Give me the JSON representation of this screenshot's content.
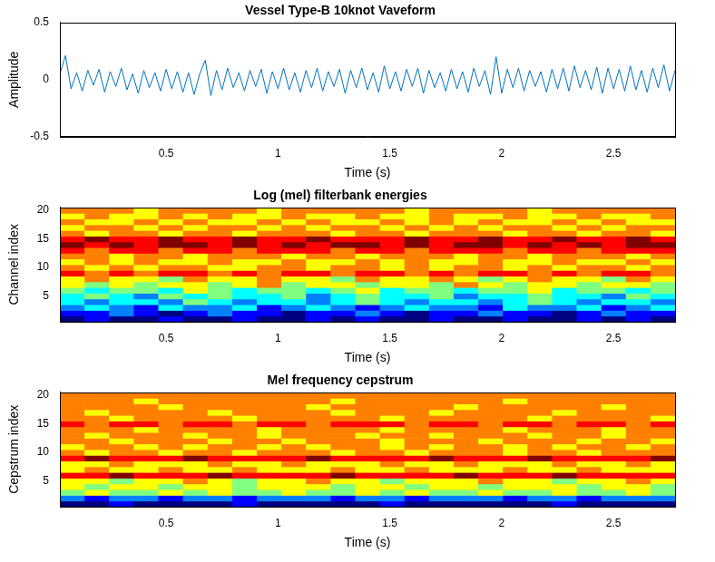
{
  "chart_data": [
    {
      "type": "line",
      "title": "Vessel Type-B 10knot Vaveform",
      "x_label": "Time (s)",
      "y_label": "Amplitude",
      "color": "#0072bd",
      "grid": false,
      "xlim": [
        0.025,
        2.775
      ],
      "xticks": [
        0.5,
        1,
        1.5,
        2,
        2.5
      ],
      "ylim": [
        -0.5,
        0.5
      ],
      "yticks": [
        -0.5,
        0,
        0.5
      ],
      "x": [
        0.025,
        0.05,
        0.075,
        0.1,
        0.125,
        0.15,
        0.175,
        0.2,
        0.225,
        0.25,
        0.275,
        0.3,
        0.325,
        0.35,
        0.375,
        0.4,
        0.425,
        0.45,
        0.475,
        0.5,
        0.525,
        0.55,
        0.575,
        0.6,
        0.625,
        0.65,
        0.675,
        0.7,
        0.725,
        0.75,
        0.775,
        0.8,
        0.825,
        0.85,
        0.875,
        0.9,
        0.925,
        0.95,
        0.975,
        1,
        1.025,
        1.05,
        1.075,
        1.1,
        1.125,
        1.15,
        1.175,
        1.2,
        1.225,
        1.25,
        1.275,
        1.3,
        1.325,
        1.35,
        1.375,
        1.4,
        1.425,
        1.45,
        1.475,
        1.5,
        1.525,
        1.55,
        1.575,
        1.6,
        1.625,
        1.65,
        1.675,
        1.7,
        1.725,
        1.75,
        1.775,
        1.8,
        1.825,
        1.85,
        1.875,
        1.9,
        1.925,
        1.95,
        1.975,
        2,
        2.025,
        2.05,
        2.075,
        2.1,
        2.125,
        2.15,
        2.175,
        2.2,
        2.225,
        2.25,
        2.275,
        2.3,
        2.325,
        2.35,
        2.375,
        2.4,
        2.425,
        2.45,
        2.475,
        2.5,
        2.525,
        2.55,
        2.575,
        2.6,
        2.625,
        2.65,
        2.675,
        2.7,
        2.725,
        2.75,
        2.775
      ],
      "values": [
        0.05,
        0.21,
        -0.08,
        0.06,
        -0.1,
        0.08,
        -0.05,
        0.09,
        -0.11,
        0.07,
        -0.06,
        0.1,
        -0.09,
        0.05,
        -0.12,
        0.08,
        -0.07,
        0.06,
        -0.1,
        0.09,
        -0.08,
        0.07,
        -0.11,
        0.06,
        -0.13,
        0.05,
        0.17,
        -0.14,
        0.08,
        -0.09,
        0.1,
        -0.07,
        0.06,
        -0.1,
        0.08,
        -0.06,
        0.09,
        -0.12,
        0.07,
        -0.08,
        0.1,
        -0.09,
        0.06,
        -0.11,
        0.08,
        -0.07,
        0.1,
        -0.1,
        0.07,
        -0.06,
        0.09,
        -0.12,
        0.08,
        -0.07,
        0.1,
        -0.09,
        0.06,
        -0.11,
        0.12,
        -0.08,
        0.07,
        -0.1,
        0.09,
        -0.06,
        0.1,
        -0.12,
        0.08,
        -0.07,
        0.06,
        -0.1,
        0.09,
        -0.08,
        0.07,
        -0.11,
        0.1,
        -0.06,
        0.08,
        -0.13,
        0.2,
        -0.12,
        0.09,
        -0.07,
        0.1,
        -0.1,
        0.08,
        -0.06,
        0.07,
        -0.11,
        0.09,
        -0.08,
        0.1,
        -0.1,
        0.12,
        -0.07,
        0.08,
        -0.09,
        0.11,
        -0.12,
        0.1,
        -0.08,
        0.09,
        -0.1,
        0.12,
        -0.09,
        0.08,
        -0.11,
        0.1,
        -0.07,
        0.13,
        -0.1,
        0.08
      ]
    },
    {
      "type": "heatmap",
      "title": "Log (mel) filterbank energies",
      "x_label": "Time (s)",
      "y_label": "Channel index",
      "grid": false,
      "xlim": [
        0.025,
        2.775
      ],
      "xticks": [
        0.5,
        1,
        1.5,
        2,
        2.5
      ],
      "ylim": [
        0.5,
        20.5
      ],
      "yticks": [
        5,
        10,
        15,
        20
      ],
      "x": [
        0.08,
        0.19,
        0.3,
        0.41,
        0.52,
        0.63,
        0.74,
        0.85,
        0.96,
        1.07,
        1.18,
        1.29,
        1.4,
        1.51,
        1.62,
        1.73,
        1.84,
        1.95,
        2.06,
        2.17,
        2.28,
        2.39,
        2.5,
        2.61,
        2.72
      ],
      "y": [
        1,
        2,
        3,
        4,
        5,
        6,
        7,
        8,
        9,
        10,
        11,
        12,
        13,
        14,
        15,
        16,
        17,
        18,
        19,
        20
      ],
      "cells": [
        [
          1,
          2,
          1,
          1,
          2,
          1,
          1,
          2,
          1,
          1,
          2,
          1,
          2,
          1,
          1,
          2,
          1,
          1,
          2,
          1,
          1,
          2,
          1,
          2,
          1
        ],
        [
          2,
          2,
          3,
          2,
          1,
          2,
          3,
          2,
          2,
          1,
          2,
          2,
          3,
          2,
          1,
          2,
          2,
          3,
          2,
          2,
          1,
          2,
          3,
          2,
          2
        ],
        [
          3,
          4,
          3,
          2,
          4,
          3,
          3,
          4,
          2,
          3,
          4,
          3,
          2,
          3,
          4,
          3,
          3,
          2,
          4,
          3,
          3,
          4,
          2,
          3,
          4
        ],
        [
          4,
          3,
          4,
          4,
          3,
          5,
          4,
          3,
          4,
          4,
          3,
          4,
          5,
          4,
          3,
          4,
          4,
          3,
          4,
          5,
          4,
          3,
          4,
          4,
          3
        ],
        [
          4,
          5,
          4,
          3,
          5,
          4,
          5,
          4,
          4,
          5,
          3,
          4,
          5,
          4,
          4,
          5,
          3,
          4,
          4,
          5,
          4,
          4,
          3,
          5,
          4
        ],
        [
          5,
          4,
          5,
          5,
          4,
          6,
          5,
          4,
          5,
          5,
          4,
          5,
          6,
          4,
          5,
          5,
          4,
          5,
          5,
          6,
          4,
          5,
          5,
          4,
          5
        ],
        [
          6,
          5,
          6,
          5,
          6,
          6,
          5,
          6,
          7,
          5,
          6,
          6,
          5,
          6,
          6,
          5,
          7,
          6,
          5,
          6,
          6,
          5,
          6,
          6,
          5
        ],
        [
          6,
          7,
          6,
          6,
          5,
          7,
          6,
          6,
          7,
          6,
          6,
          5,
          7,
          6,
          6,
          7,
          6,
          5,
          6,
          7,
          6,
          6,
          5,
          7,
          6
        ],
        [
          8,
          7,
          8,
          7,
          8,
          8,
          7,
          8,
          7,
          8,
          8,
          7,
          8,
          8,
          7,
          8,
          7,
          8,
          8,
          7,
          8,
          7,
          8,
          8,
          7
        ],
        [
          7,
          6,
          7,
          6,
          7,
          7,
          6,
          6,
          7,
          7,
          6,
          7,
          7,
          6,
          7,
          6,
          7,
          7,
          6,
          7,
          6,
          7,
          7,
          6,
          7
        ],
        [
          6,
          7,
          6,
          7,
          6,
          6,
          7,
          6,
          6,
          7,
          6,
          6,
          7,
          6,
          7,
          6,
          6,
          7,
          6,
          6,
          7,
          6,
          6,
          7,
          6
        ],
        [
          7,
          7,
          6,
          7,
          7,
          6,
          7,
          7,
          7,
          6,
          7,
          7,
          6,
          7,
          7,
          7,
          6,
          7,
          7,
          6,
          7,
          7,
          7,
          6,
          7
        ],
        [
          8,
          7,
          8,
          8,
          7,
          8,
          8,
          7,
          8,
          8,
          8,
          7,
          8,
          8,
          7,
          8,
          8,
          8,
          7,
          8,
          8,
          7,
          8,
          8,
          8
        ],
        [
          9,
          8,
          9,
          8,
          9,
          9,
          8,
          9,
          8,
          9,
          8,
          9,
          9,
          8,
          9,
          8,
          9,
          9,
          8,
          9,
          8,
          9,
          8,
          9,
          9
        ],
        [
          8,
          9,
          8,
          8,
          9,
          8,
          8,
          9,
          8,
          8,
          9,
          8,
          8,
          8,
          9,
          8,
          8,
          9,
          8,
          8,
          9,
          8,
          8,
          9,
          8
        ],
        [
          7,
          6,
          7,
          7,
          6,
          7,
          7,
          6,
          7,
          7,
          7,
          6,
          7,
          7,
          6,
          7,
          7,
          7,
          6,
          7,
          7,
          6,
          7,
          7,
          6
        ],
        [
          6,
          7,
          7,
          6,
          7,
          6,
          7,
          7,
          6,
          7,
          6,
          7,
          7,
          6,
          7,
          6,
          7,
          6,
          7,
          7,
          6,
          7,
          6,
          7,
          7
        ],
        [
          7,
          6,
          6,
          7,
          6,
          7,
          6,
          6,
          7,
          6,
          7,
          6,
          6,
          7,
          6,
          7,
          6,
          7,
          6,
          6,
          7,
          6,
          7,
          6,
          6
        ],
        [
          6,
          7,
          6,
          6,
          7,
          6,
          7,
          6,
          6,
          7,
          6,
          6,
          7,
          6,
          6,
          7,
          6,
          6,
          7,
          6,
          6,
          7,
          6,
          6,
          7
        ],
        [
          7,
          7,
          7,
          6,
          7,
          7,
          7,
          7,
          6,
          7,
          7,
          7,
          7,
          7,
          6,
          7,
          7,
          7,
          7,
          6,
          7,
          7,
          7,
          7,
          7
        ]
      ]
    },
    {
      "type": "heatmap",
      "title": "Mel frequency cepstrum",
      "x_label": "Time (s)",
      "y_label": "Cepstrum index",
      "grid": false,
      "xlim": [
        0.025,
        2.775
      ],
      "xticks": [
        0.5,
        1,
        1.5,
        2,
        2.5
      ],
      "ylim": [
        0.5,
        20.5
      ],
      "yticks": [
        5,
        10,
        15,
        20
      ],
      "x": [
        0.08,
        0.19,
        0.3,
        0.41,
        0.52,
        0.63,
        0.74,
        0.85,
        0.96,
        1.07,
        1.18,
        1.29,
        1.4,
        1.51,
        1.62,
        1.73,
        1.84,
        1.95,
        2.06,
        2.17,
        2.28,
        2.39,
        2.5,
        2.61,
        2.72
      ],
      "y": [
        1,
        2,
        3,
        4,
        5,
        6,
        7,
        8,
        9,
        10,
        11,
        12,
        13,
        14,
        15,
        16,
        17,
        18,
        19,
        20
      ],
      "cells": [
        [
          1,
          1,
          2,
          1,
          1,
          1,
          1,
          2,
          1,
          1,
          1,
          1,
          1,
          2,
          1,
          1,
          1,
          1,
          1,
          1,
          2,
          1,
          1,
          1,
          1
        ],
        [
          3,
          2,
          3,
          3,
          2,
          3,
          3,
          2,
          3,
          3,
          3,
          2,
          3,
          3,
          2,
          3,
          3,
          3,
          2,
          3,
          3,
          2,
          3,
          3,
          3
        ],
        [
          5,
          6,
          5,
          5,
          6,
          5,
          6,
          5,
          5,
          6,
          5,
          5,
          6,
          5,
          6,
          5,
          5,
          6,
          5,
          5,
          6,
          5,
          5,
          6,
          5
        ],
        [
          6,
          5,
          6,
          6,
          5,
          6,
          6,
          5,
          6,
          6,
          6,
          5,
          6,
          6,
          5,
          6,
          6,
          5,
          6,
          6,
          6,
          5,
          6,
          6,
          5
        ],
        [
          6,
          6,
          5,
          6,
          6,
          7,
          6,
          5,
          6,
          6,
          7,
          6,
          6,
          5,
          6,
          6,
          6,
          7,
          6,
          6,
          5,
          6,
          6,
          7,
          6
        ],
        [
          8,
          8,
          9,
          8,
          8,
          8,
          9,
          8,
          8,
          8,
          8,
          9,
          8,
          8,
          8,
          8,
          9,
          8,
          8,
          8,
          9,
          8,
          8,
          8,
          8
        ],
        [
          6,
          7,
          6,
          6,
          7,
          6,
          6,
          7,
          6,
          6,
          6,
          7,
          6,
          6,
          7,
          6,
          6,
          6,
          7,
          6,
          6,
          7,
          6,
          6,
          6
        ],
        [
          6,
          6,
          7,
          6,
          6,
          6,
          7,
          6,
          6,
          7,
          6,
          6,
          6,
          7,
          6,
          6,
          7,
          6,
          6,
          6,
          7,
          6,
          6,
          7,
          6
        ],
        [
          8,
          9,
          8,
          8,
          8,
          9,
          8,
          8,
          8,
          8,
          9,
          8,
          8,
          8,
          8,
          9,
          8,
          8,
          8,
          9,
          8,
          8,
          8,
          8,
          9
        ],
        [
          7,
          6,
          7,
          7,
          6,
          7,
          7,
          6,
          7,
          7,
          7,
          6,
          7,
          7,
          6,
          7,
          7,
          7,
          6,
          7,
          7,
          6,
          7,
          7,
          7
        ],
        [
          6,
          7,
          7,
          6,
          7,
          6,
          7,
          7,
          6,
          7,
          6,
          7,
          7,
          6,
          7,
          6,
          7,
          7,
          6,
          7,
          6,
          7,
          7,
          6,
          7
        ],
        [
          7,
          7,
          6,
          7,
          7,
          7,
          6,
          7,
          7,
          6,
          7,
          7,
          7,
          6,
          7,
          7,
          7,
          6,
          7,
          7,
          7,
          6,
          7,
          7,
          6
        ],
        [
          7,
          6,
          7,
          7,
          7,
          6,
          7,
          7,
          6,
          7,
          7,
          7,
          6,
          7,
          7,
          6,
          7,
          7,
          7,
          6,
          7,
          7,
          6,
          7,
          7
        ],
        [
          7,
          7,
          7,
          6,
          7,
          7,
          7,
          7,
          6,
          7,
          7,
          7,
          7,
          6,
          7,
          7,
          7,
          7,
          6,
          7,
          7,
          7,
          6,
          7,
          7
        ],
        [
          8,
          7,
          8,
          8,
          7,
          8,
          8,
          7,
          8,
          8,
          7,
          8,
          8,
          8,
          7,
          8,
          8,
          7,
          8,
          8,
          7,
          8,
          8,
          7,
          8
        ],
        [
          7,
          7,
          6,
          7,
          7,
          7,
          7,
          6,
          7,
          7,
          7,
          7,
          7,
          6,
          7,
          7,
          7,
          7,
          7,
          6,
          7,
          7,
          7,
          7,
          6
        ],
        [
          7,
          6,
          7,
          7,
          7,
          7,
          6,
          7,
          7,
          7,
          7,
          6,
          7,
          7,
          7,
          6,
          7,
          7,
          7,
          7,
          6,
          7,
          7,
          7,
          7
        ],
        [
          7,
          7,
          7,
          7,
          6,
          7,
          7,
          7,
          7,
          7,
          6,
          7,
          7,
          7,
          7,
          7,
          6,
          7,
          7,
          7,
          7,
          7,
          6,
          7,
          7
        ],
        [
          7,
          7,
          7,
          6,
          7,
          7,
          7,
          7,
          7,
          7,
          7,
          6,
          7,
          7,
          7,
          7,
          7,
          7,
          6,
          7,
          7,
          7,
          7,
          7,
          7
        ],
        [
          7,
          7,
          7,
          7,
          7,
          7,
          7,
          7,
          7,
          7,
          7,
          7,
          7,
          7,
          7,
          7,
          7,
          7,
          7,
          7,
          7,
          7,
          7,
          7,
          7
        ]
      ]
    }
  ]
}
